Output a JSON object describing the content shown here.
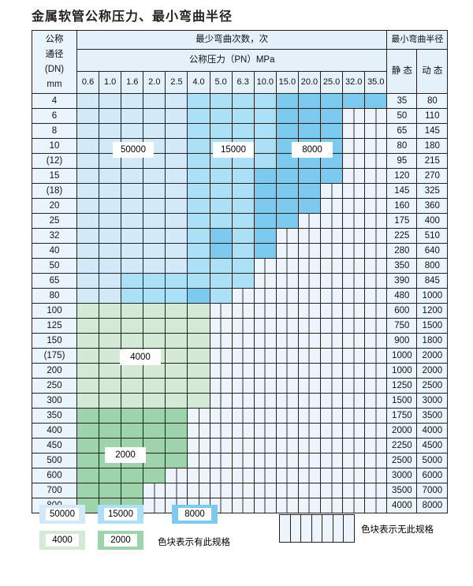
{
  "title": "金属软管公称压力、最小弯曲半径",
  "header": {
    "dn_label": [
      "公称",
      "通径",
      "(DN)",
      "mm"
    ],
    "cycles_label": "最少弯曲次数，次",
    "pressure_label": "公称压力（PN）MPa",
    "radius_label": "最小弯曲半径",
    "static_label": "静 态",
    "dynamic_label": "动 态",
    "pressures": [
      "0.6",
      "1.0",
      "1.6",
      "2.0",
      "2.5",
      "4.0",
      "5.0",
      "6.3",
      "10.0",
      "15.0",
      "20.0",
      "25.0",
      "32.0",
      "35.0"
    ]
  },
  "fill_legend": {
    "L": "50000",
    "M": "15000",
    "D": "8000",
    "g": "4000",
    "G": "2000"
  },
  "rows": [
    {
      "dn": "4",
      "fill": "LLLLLMMMMDDDDD",
      "static": "35",
      "dynamic": "80"
    },
    {
      "dn": "6",
      "fill": "LLLLLMMMMDDD",
      "static": "50",
      "dynamic": "110"
    },
    {
      "dn": "8",
      "fill": "LLLLLMMMMDDD",
      "static": "65",
      "dynamic": "145"
    },
    {
      "dn": "10",
      "fill": "LLLLLMMMMDDD",
      "static": "80",
      "dynamic": "180"
    },
    {
      "dn": "(12)",
      "fill": "LLLLLMMMMDDD",
      "static": "95",
      "dynamic": "215"
    },
    {
      "dn": "15",
      "fill": "LLLLLMMMDDDD",
      "static": "120",
      "dynamic": "270"
    },
    {
      "dn": "(18)",
      "fill": "LLLLLMMMDDD",
      "static": "145",
      "dynamic": "325"
    },
    {
      "dn": "20",
      "fill": "LLLLLMMMDDD",
      "static": "160",
      "dynamic": "360"
    },
    {
      "dn": "25",
      "fill": "LLLLLMMMDD",
      "static": "175",
      "dynamic": "400"
    },
    {
      "dn": "32",
      "fill": "LLLLLMDMD",
      "static": "225",
      "dynamic": "510"
    },
    {
      "dn": "40",
      "fill": "LLLLLMDMD",
      "static": "280",
      "dynamic": "640"
    },
    {
      "dn": "50",
      "fill": "LLLLLMMM",
      "static": "350",
      "dynamic": "800"
    },
    {
      "dn": "65",
      "fill": "LLMMMMMM",
      "static": "390",
      "dynamic": "845"
    },
    {
      "dn": "80",
      "fill": "LLMMMDM",
      "static": "480",
      "dynamic": "1000"
    },
    {
      "dn": "100",
      "fill": "gggggg",
      "static": "600",
      "dynamic": "1200"
    },
    {
      "dn": "125",
      "fill": "gggggg",
      "static": "750",
      "dynamic": "1500"
    },
    {
      "dn": "150",
      "fill": "gggggg",
      "static": "900",
      "dynamic": "1800"
    },
    {
      "dn": "(175)",
      "fill": "gggggg",
      "static": "1000",
      "dynamic": "2000"
    },
    {
      "dn": "200",
      "fill": "gggggg",
      "static": "1000",
      "dynamic": "2000"
    },
    {
      "dn": "250",
      "fill": "gggggg",
      "static": "1250",
      "dynamic": "2500"
    },
    {
      "dn": "300",
      "fill": "gggggg",
      "static": "1500",
      "dynamic": "3000"
    },
    {
      "dn": "350",
      "fill": "GGGGG",
      "static": "1750",
      "dynamic": "3500"
    },
    {
      "dn": "400",
      "fill": "GGGGG",
      "static": "2000",
      "dynamic": "4000"
    },
    {
      "dn": "450",
      "fill": "GGGGG",
      "static": "2250",
      "dynamic": "4500"
    },
    {
      "dn": "500",
      "fill": "GGGGG",
      "static": "2500",
      "dynamic": "5000"
    },
    {
      "dn": "600",
      "fill": "GGGG",
      "static": "3000",
      "dynamic": "6000"
    },
    {
      "dn": "700",
      "fill": "GGG",
      "static": "3500",
      "dynamic": "7000"
    },
    {
      "dn": "800",
      "fill": "GGG",
      "static": "4000",
      "dynamic": "8000"
    }
  ],
  "region_labels": {
    "l50000": "50000",
    "l15000": "15000",
    "l8000": "8000",
    "l4000": "4000",
    "l2000": "2000"
  },
  "legend": {
    "items": [
      {
        "label": "50000",
        "color": "#d3e9f8"
      },
      {
        "label": "15000",
        "color": "#ace0f7"
      },
      {
        "label": "8000",
        "color": "#7dcaf0"
      },
      {
        "label": "4000",
        "color": "#d5ead6"
      },
      {
        "label": "2000",
        "color": "#9fd3ab"
      }
    ],
    "has_spec": "色块表示有此规格",
    "no_spec": "色块表示无此规格"
  }
}
